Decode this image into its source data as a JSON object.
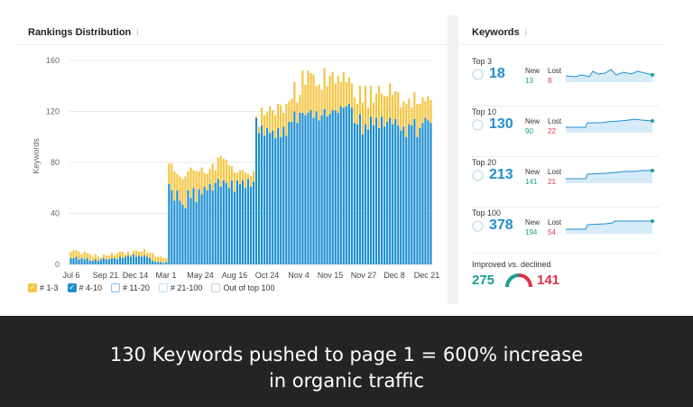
{
  "rankings": {
    "title": "Rankings Distribution",
    "info_icon": "i",
    "y_axis_label": "Keywords",
    "legend": [
      {
        "label": "# 1-3",
        "checked": true,
        "color": "#f4c542"
      },
      {
        "label": "# 4-10",
        "checked": true,
        "color": "#1f8fd0"
      },
      {
        "label": "# 11-20",
        "checked": false,
        "color": "#7cc6ef"
      },
      {
        "label": "# 21-100",
        "checked": false,
        "color": "#b9def5"
      },
      {
        "label": "Out of top 100",
        "checked": false,
        "color": "#cfcfcf"
      }
    ]
  },
  "chart_data": {
    "type": "bar",
    "stacked": true,
    "ylabel": "Keywords",
    "ylim": [
      0,
      160
    ],
    "yticks": [
      0,
      40,
      80,
      120,
      160
    ],
    "xtick_labels": [
      "Jul 6",
      "Sep 21",
      "Dec 14",
      "Mar 1",
      "May 24",
      "Aug 16",
      "Oct 24",
      "Nov 4",
      "Nov 15",
      "Nov 27",
      "Dec 8",
      "Dec 21"
    ],
    "series": [
      {
        "name": "# 4-10",
        "color": "#1f8fd0",
        "values": [
          5,
          5,
          6,
          4,
          5,
          4,
          5,
          3,
          3,
          4,
          3,
          4,
          5,
          4,
          4,
          5,
          5,
          4,
          6,
          5,
          6,
          7,
          6,
          8,
          6,
          7,
          6,
          7,
          6,
          5,
          3,
          2,
          2,
          2,
          1,
          2,
          63,
          58,
          50,
          58,
          50,
          47,
          44,
          58,
          52,
          60,
          49,
          59,
          55,
          61,
          58,
          63,
          58,
          64,
          67,
          61,
          66,
          64,
          60,
          66,
          57,
          66,
          63,
          66,
          60,
          67,
          61,
          65,
          115,
          103,
          109,
          101,
          107,
          103,
          105,
          99,
          107,
          100,
          108,
          101,
          112,
          112,
          120,
          111,
          119,
          119,
          117,
          119,
          121,
          115,
          120,
          113,
          117,
          122,
          116,
          118,
          121,
          121,
          119,
          124,
          123,
          124,
          126,
          123,
          111,
          110,
          118,
          102,
          110,
          106,
          116,
          109,
          115,
          107,
          116,
          108,
          112,
          115,
          110,
          114,
          109,
          105,
          108,
          100,
          110,
          109,
          114,
          100,
          107,
          111,
          115,
          113,
          111
        ]
      },
      {
        "name": "# 1-3",
        "color": "#f4c542",
        "values": [
          5,
          6,
          5,
          6,
          3,
          6,
          4,
          5,
          3,
          4,
          3,
          1,
          3,
          3,
          3,
          4,
          2,
          5,
          4,
          5,
          2,
          3,
          2,
          3,
          5,
          3,
          4,
          5,
          3,
          4,
          6,
          4,
          4,
          4,
          4,
          3,
          16,
          21,
          23,
          13,
          19,
          20,
          25,
          15,
          24,
          14,
          24,
          14,
          21,
          11,
          13,
          12,
          21,
          10,
          17,
          24,
          17,
          18,
          18,
          11,
          15,
          6,
          11,
          8,
          12,
          4,
          8,
          8,
          1,
          5,
          14,
          16,
          13,
          21,
          16,
          18,
          19,
          25,
          11,
          25,
          16,
          18,
          23,
          16,
          14,
          33,
          24,
          33,
          29,
          34,
          20,
          28,
          20,
          32,
          24,
          30,
          30,
          21,
          29,
          19,
          28,
          19,
          21,
          19,
          20,
          16,
          22,
          25,
          30,
          17,
          24,
          18,
          19,
          33,
          18,
          24,
          20,
          27,
          23,
          22,
          26,
          18,
          20,
          26,
          20,
          14,
          21,
          26,
          19,
          20,
          13,
          19,
          18
        ]
      }
    ]
  },
  "keywords": {
    "title": "Keywords",
    "info_icon": "i",
    "rows": [
      {
        "label": "Top 3",
        "value": "18",
        "new_label": "New",
        "new": "13",
        "lost_label": "Lost",
        "lost": "8"
      },
      {
        "label": "Top 10",
        "value": "130",
        "new_label": "New",
        "new": "90",
        "lost_label": "Lost",
        "lost": "22"
      },
      {
        "label": "Top 20",
        "value": "213",
        "new_label": "New",
        "new": "141",
        "lost_label": "Lost",
        "lost": "21"
      },
      {
        "label": "Top 100",
        "value": "378",
        "new_label": "New",
        "new": "194",
        "lost_label": "Lost",
        "lost": "54"
      }
    ],
    "improved_label": "Improved vs. declined",
    "improved": "275",
    "declined": "141",
    "colors": {
      "value": "#1f8fd0",
      "new": "#1a9e8f",
      "lost": "#e0314b",
      "improved": "#1a9e8f",
      "declined": "#e0314b"
    }
  },
  "banner": {
    "line1": "130 Keywords pushed to page 1 = 600% increase",
    "line2": "in organic traffic"
  }
}
